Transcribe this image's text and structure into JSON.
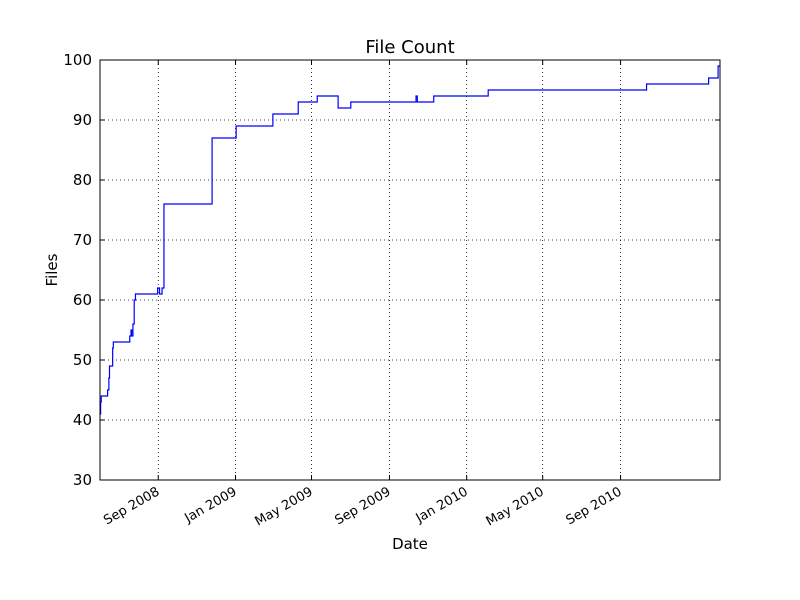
{
  "chart_data": {
    "type": "line",
    "title": "File Count",
    "xlabel": "Date",
    "ylabel": "Files",
    "xlim": [
      "2008-06-01",
      "2011-02-05"
    ],
    "ylim": [
      30,
      100
    ],
    "y_ticks": [
      30,
      40,
      50,
      60,
      70,
      80,
      90,
      100
    ],
    "x_ticks": [
      {
        "date": "2008-09-01",
        "label": "Sep 2008"
      },
      {
        "date": "2009-01-01",
        "label": "Jan 2009"
      },
      {
        "date": "2009-05-01",
        "label": "May 2009"
      },
      {
        "date": "2009-09-01",
        "label": "Sep 2009"
      },
      {
        "date": "2010-01-01",
        "label": "Jan 2010"
      },
      {
        "date": "2010-05-01",
        "label": "May 2010"
      },
      {
        "date": "2010-09-01",
        "label": "Sep 2010"
      }
    ],
    "grid": true,
    "line_color": "#0000ff",
    "series": [
      {
        "step": true,
        "points": [
          [
            "2008-06-01",
            41
          ],
          [
            "2008-06-02",
            43
          ],
          [
            "2008-06-03",
            44
          ],
          [
            "2008-06-08",
            44
          ],
          [
            "2008-06-13",
            45
          ],
          [
            "2008-06-15",
            47
          ],
          [
            "2008-06-16",
            49
          ],
          [
            "2008-06-21",
            52
          ],
          [
            "2008-06-22",
            53
          ],
          [
            "2008-07-18",
            54
          ],
          [
            "2008-07-20",
            55
          ],
          [
            "2008-07-21",
            54
          ],
          [
            "2008-07-23",
            56
          ],
          [
            "2008-07-25",
            60
          ],
          [
            "2008-07-27",
            61
          ],
          [
            "2008-08-31",
            62
          ],
          [
            "2008-09-03",
            61
          ],
          [
            "2008-09-07",
            62
          ],
          [
            "2008-09-10",
            76
          ],
          [
            "2008-11-25",
            87
          ],
          [
            "2009-01-02",
            89
          ],
          [
            "2009-01-20",
            89
          ],
          [
            "2009-03-01",
            91
          ],
          [
            "2009-04-10",
            93
          ],
          [
            "2009-05-10",
            94
          ],
          [
            "2009-06-12",
            92
          ],
          [
            "2009-07-02",
            93
          ],
          [
            "2009-10-13",
            94
          ],
          [
            "2009-10-15",
            93
          ],
          [
            "2009-11-10",
            94
          ],
          [
            "2010-02-04",
            95
          ],
          [
            "2010-10-12",
            96
          ],
          [
            "2011-01-18",
            97
          ],
          [
            "2011-02-02",
            99
          ],
          [
            "2011-02-05",
            99
          ]
        ]
      }
    ]
  }
}
